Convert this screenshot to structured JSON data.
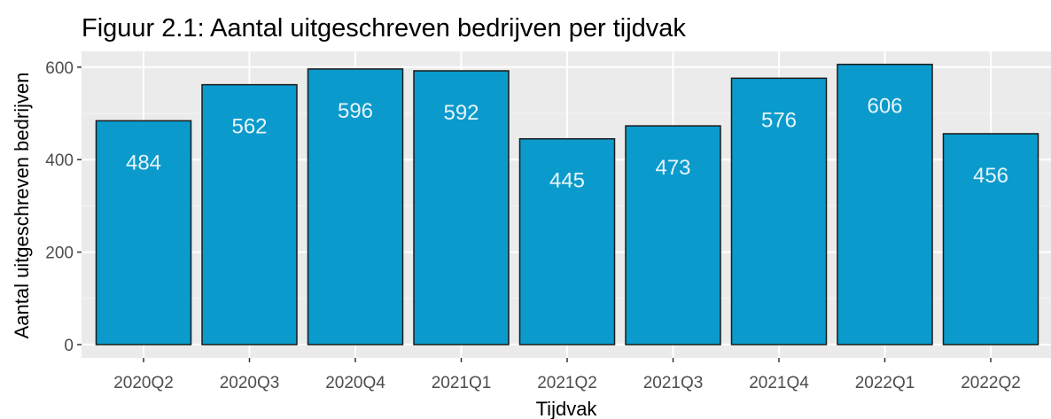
{
  "chart_data": {
    "type": "bar",
    "title": "Figuur 2.1: Aantal uitgeschreven bedrijven per tijdvak",
    "xlabel": "Tijdvak",
    "ylabel": "Aantal uitgeschreven bedrijven",
    "categories": [
      "2020Q2",
      "2020Q3",
      "2020Q4",
      "2021Q1",
      "2021Q2",
      "2021Q3",
      "2021Q4",
      "2022Q1",
      "2022Q2"
    ],
    "values": [
      484,
      562,
      596,
      592,
      445,
      473,
      576,
      606,
      456
    ],
    "data_labels": [
      "484",
      "562",
      "596",
      "592",
      "445",
      "473",
      "576",
      "606",
      "456"
    ],
    "y_ticks": [
      0,
      200,
      400,
      600
    ],
    "y_tick_labels": [
      "0",
      "200",
      "400",
      "600"
    ],
    "ylim": [
      0,
      636
    ],
    "grid": true,
    "legend": "none",
    "colors": {
      "bar_fill": "#0a9bcc",
      "bar_stroke": "#1a1a1a",
      "panel_bg": "#ebebeb",
      "grid_major": "#ffffff",
      "bar_label": "#e8f4fa",
      "tick_label": "#4d4d4d"
    }
  }
}
